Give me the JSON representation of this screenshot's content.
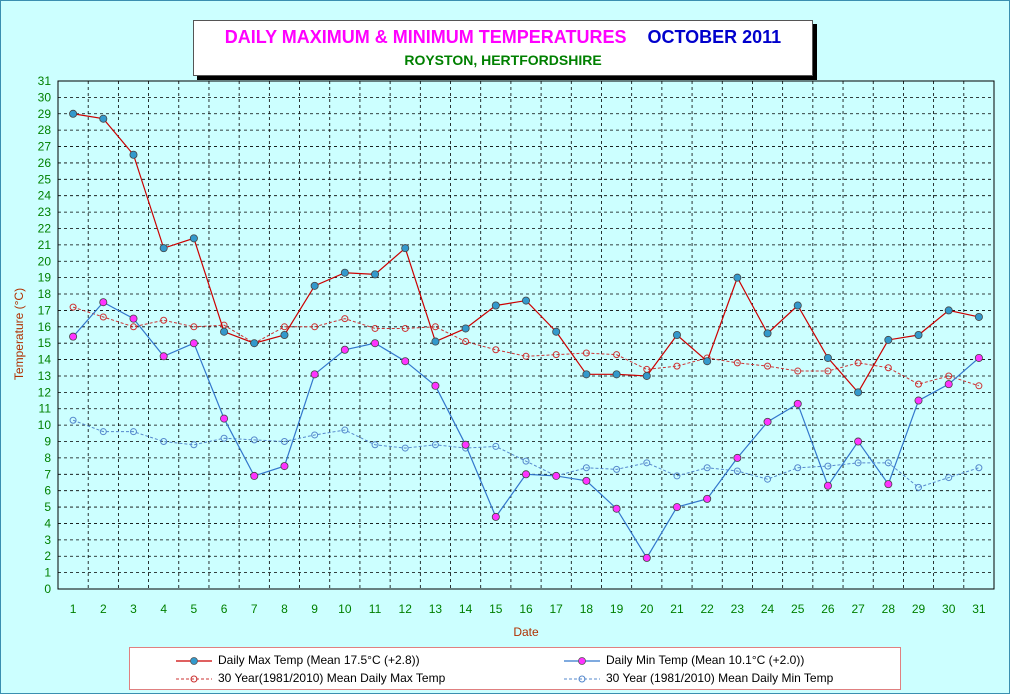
{
  "title": {
    "main": "DAILY MAXIMUM &  MINIMUM  TEMPERATURES",
    "period": "OCTOBER 2011",
    "subtitle": "ROYSTON, HERTFORDSHIRE"
  },
  "colors": {
    "background": "#ccffff",
    "max_line": "#cc0000",
    "max_marker": "#3399cc",
    "min_line": "#3377cc",
    "min_marker": "#ff33ff",
    "mean_max": "#cc3333",
    "mean_min": "#5588cc",
    "grid": "#000000",
    "tick_text": "#008000",
    "axis_label": "#b03000"
  },
  "chart_data": {
    "type": "line",
    "xlabel": "Date",
    "ylabel": "Temperature (°C)",
    "x": [
      1,
      2,
      3,
      4,
      5,
      6,
      7,
      8,
      9,
      10,
      11,
      12,
      13,
      14,
      15,
      16,
      17,
      18,
      19,
      20,
      21,
      22,
      23,
      24,
      25,
      26,
      27,
      28,
      29,
      30,
      31
    ],
    "ylim": [
      0,
      31
    ],
    "grid": true,
    "legend_position": "bottom",
    "series": [
      {
        "name": "Daily Max Temp (Mean 17.5°C (+2.8))",
        "style": "solid",
        "values": [
          29.0,
          28.7,
          26.5,
          20.8,
          21.4,
          15.7,
          15.0,
          15.5,
          18.5,
          19.3,
          19.2,
          20.8,
          15.1,
          15.9,
          17.3,
          17.6,
          15.7,
          13.1,
          13.1,
          13.0,
          15.5,
          13.9,
          19.0,
          15.6,
          17.3,
          14.1,
          12.0,
          15.2,
          15.5,
          17.0,
          16.6
        ]
      },
      {
        "name": "Daily Min Temp (Mean 10.1°C (+2.0))",
        "style": "solid",
        "values": [
          15.4,
          17.5,
          16.5,
          14.2,
          15.0,
          10.4,
          6.9,
          7.5,
          13.1,
          14.6,
          15.0,
          13.9,
          12.4,
          8.8,
          4.4,
          7.0,
          6.9,
          6.6,
          4.9,
          1.9,
          5.0,
          5.5,
          8.0,
          10.2,
          11.3,
          6.3,
          9.0,
          6.4,
          11.5,
          12.5,
          14.1
        ]
      },
      {
        "name": "30 Year(1981/2010)  Mean Daily Max Temp",
        "style": "dashed",
        "values": [
          17.2,
          16.6,
          16.0,
          16.4,
          16.0,
          16.1,
          15.0,
          16.0,
          16.0,
          16.5,
          15.9,
          15.9,
          16.0,
          15.1,
          14.6,
          14.2,
          14.3,
          14.4,
          14.3,
          13.4,
          13.6,
          14.1,
          13.8,
          13.6,
          13.3,
          13.3,
          13.8,
          13.5,
          12.5,
          13.0,
          12.4
        ]
      },
      {
        "name": "30 Year (1981/2010) Mean Daily Min Temp",
        "style": "dashed",
        "values": [
          10.3,
          9.6,
          9.6,
          9.0,
          8.8,
          9.2,
          9.1,
          9.0,
          9.4,
          9.7,
          8.8,
          8.6,
          8.8,
          8.6,
          8.7,
          7.8,
          6.9,
          7.4,
          7.3,
          7.7,
          6.9,
          7.4,
          7.2,
          6.7,
          7.4,
          7.5,
          7.7,
          7.7,
          6.2,
          6.8,
          7.4
        ]
      }
    ]
  }
}
